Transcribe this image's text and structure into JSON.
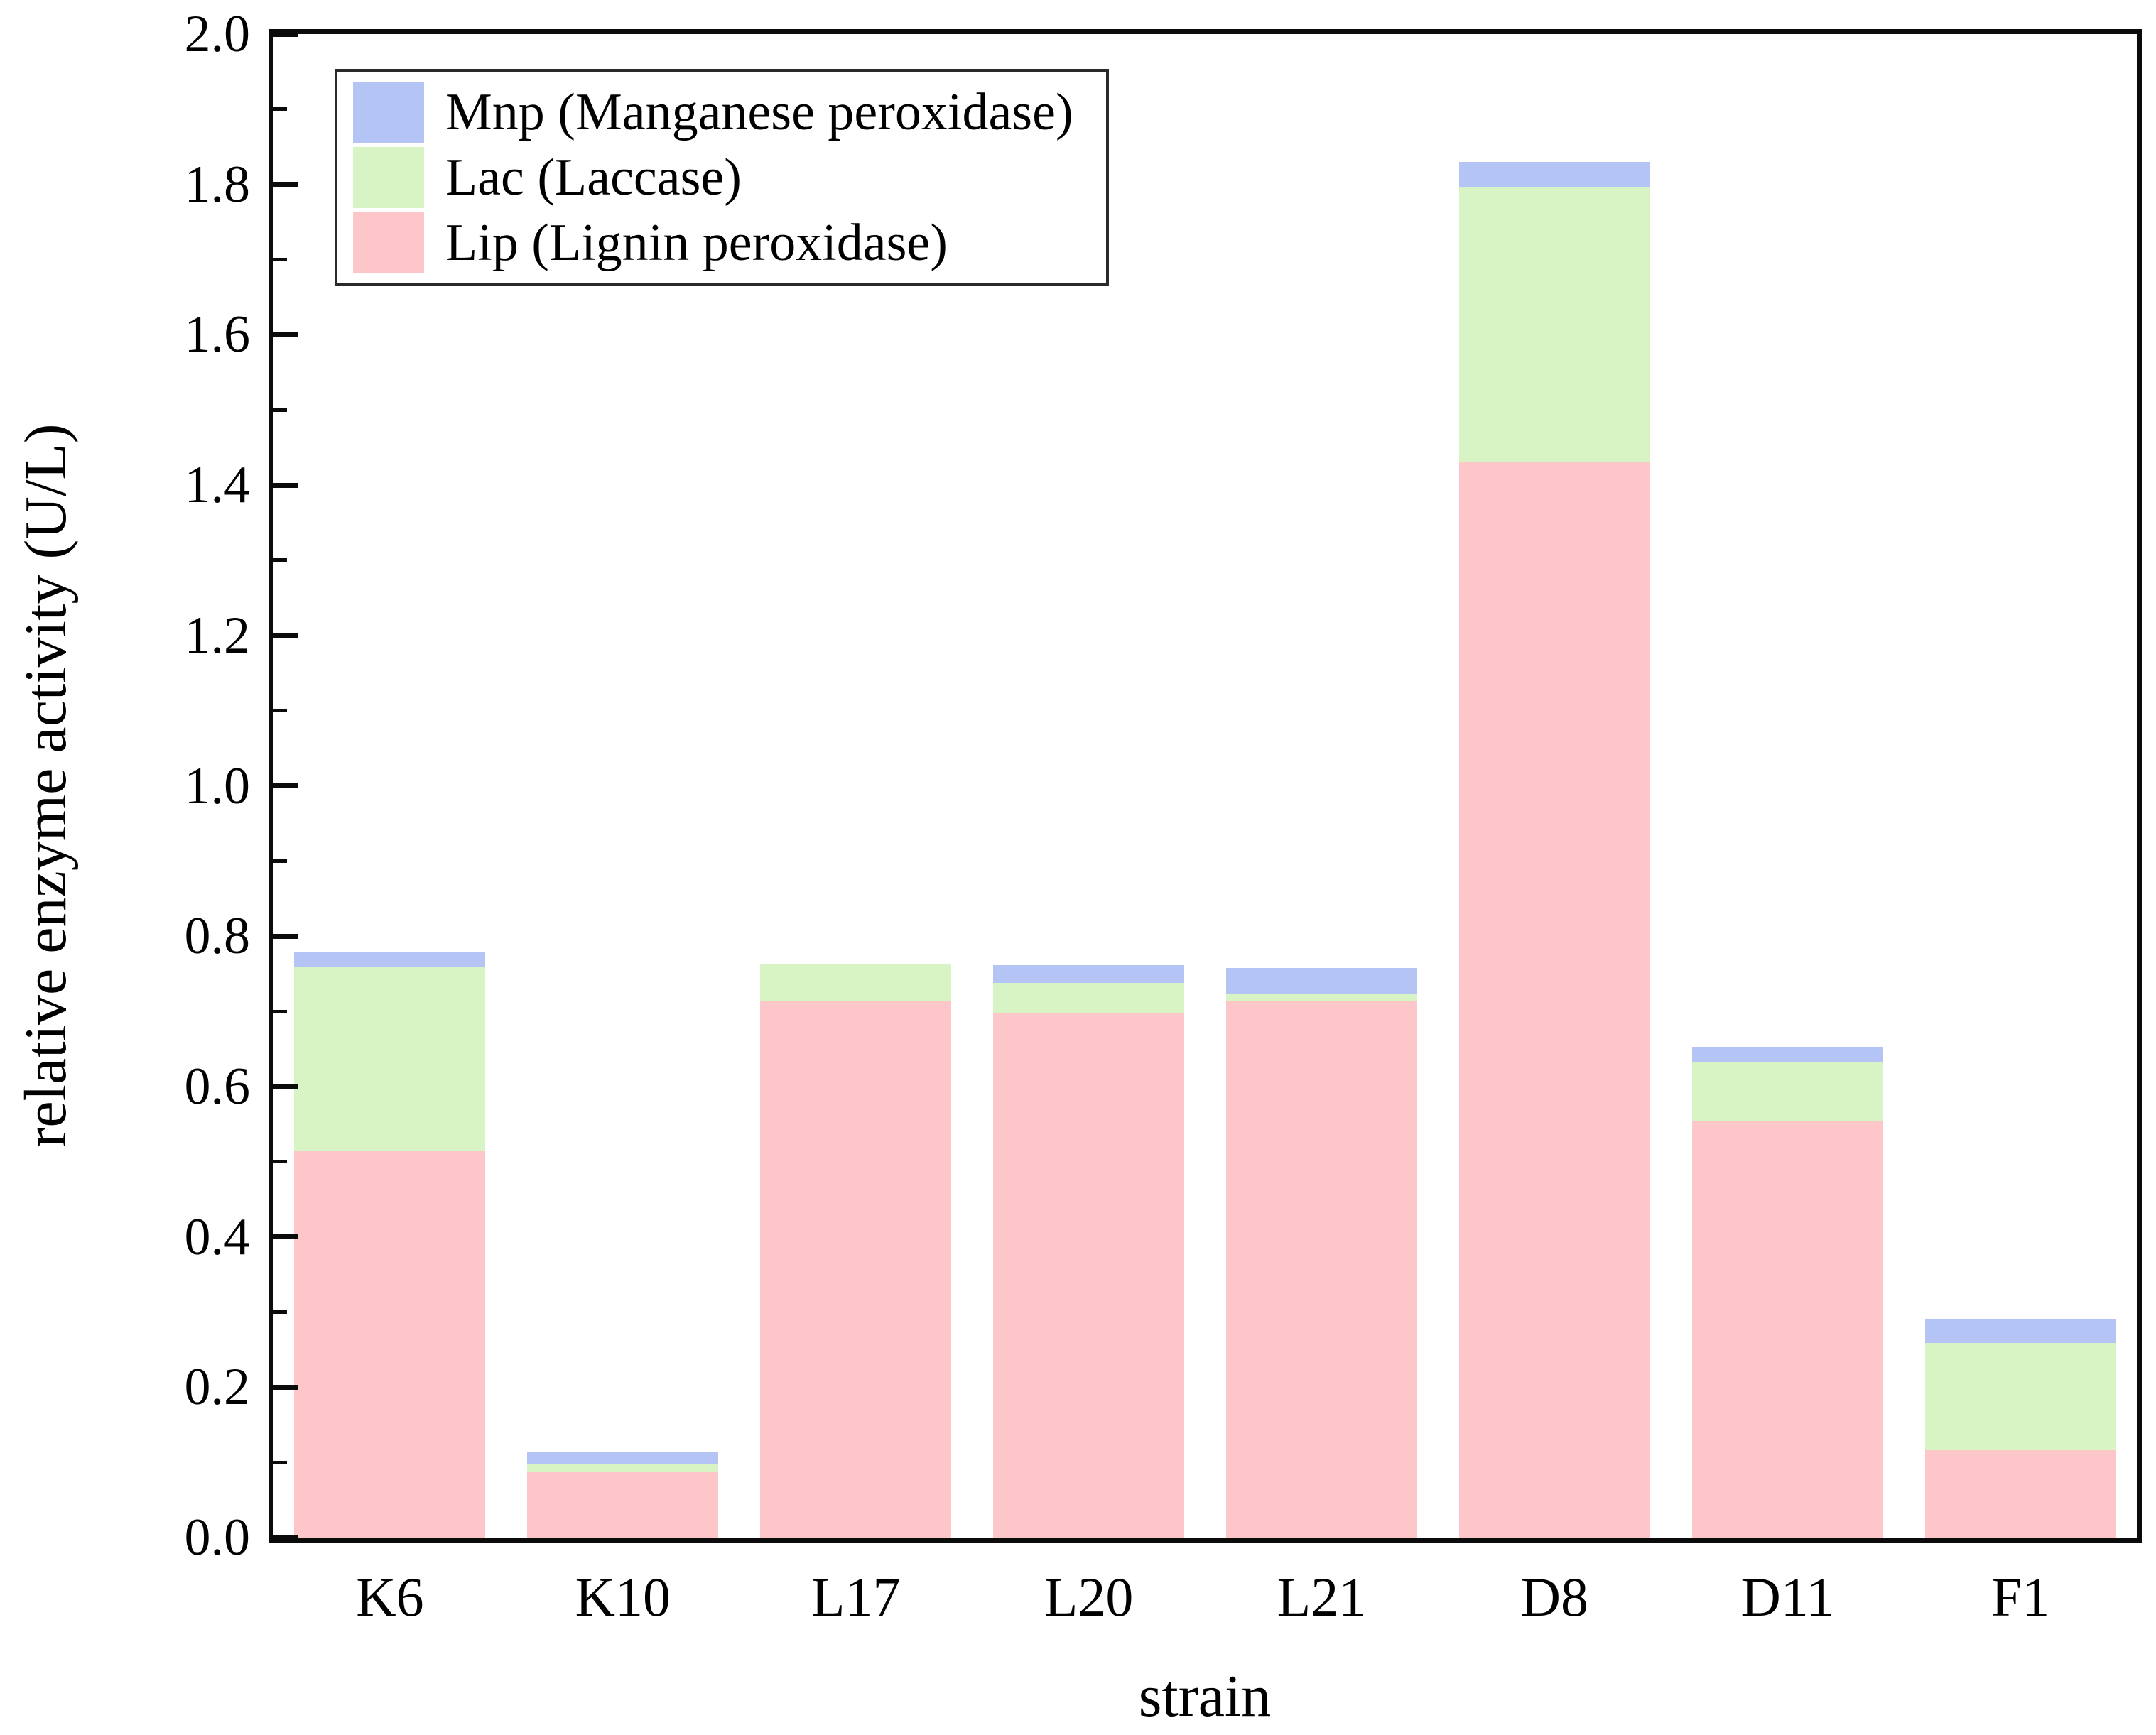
{
  "chart_data": {
    "type": "bar",
    "stacked": true,
    "title": "",
    "xlabel": "strain",
    "ylabel": "relative enzyme activity (U/L)",
    "categories": [
      "K6",
      "K10",
      "L17",
      "L20",
      "L21",
      "D8",
      "D11",
      "F1"
    ],
    "series": [
      {
        "name": "Lip (Lignin peroxidase)",
        "color": "#fdc7c9",
        "values": [
          0.515,
          0.088,
          0.714,
          0.697,
          0.714,
          1.431,
          0.555,
          0.116
        ]
      },
      {
        "name": "Lac (Laccase)",
        "color": "#d8f4c5",
        "values": [
          0.245,
          0.01,
          0.049,
          0.041,
          0.01,
          0.366,
          0.077,
          0.143
        ]
      },
      {
        "name": "Mnp (Manganese peroxidase)",
        "color": "#b4c5f5",
        "values": [
          0.018,
          0.016,
          0.0,
          0.023,
          0.034,
          0.033,
          0.021,
          0.032
        ]
      }
    ],
    "stack_totals": [
      0.778,
      0.114,
      0.763,
      0.761,
      0.758,
      1.83,
      0.653,
      0.291
    ],
    "legend_order": [
      "Mnp (Manganese peroxidase)",
      "Lac (Laccase)",
      "Lip (Lignin peroxidase)"
    ],
    "legend_position": "upper-left",
    "ylim": [
      0.0,
      2.0
    ],
    "ytick_step": 0.2,
    "yminor_step": 0.1,
    "ytick_labels": [
      "0.0",
      "0.2",
      "0.4",
      "0.6",
      "0.8",
      "1.0",
      "1.2",
      "1.4",
      "1.6",
      "1.8",
      "2.0"
    ],
    "grid": false,
    "axis_color": "#0b0b0b",
    "background_color": "#ffffff"
  }
}
